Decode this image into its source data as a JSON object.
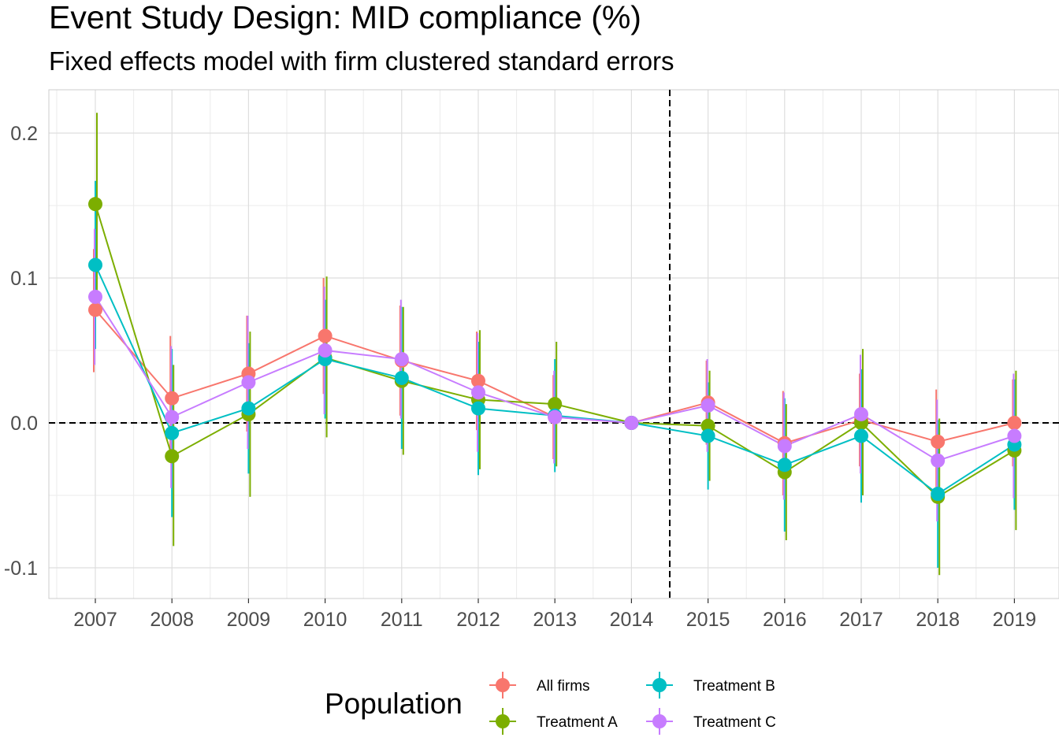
{
  "chart_data": {
    "type": "line",
    "title": "Event Study Design: MID compliance (%)",
    "subtitle": "Fixed effects model with firm clustered standard errors",
    "xlabel": "",
    "ylabel": "",
    "categories": [
      "2007",
      "2008",
      "2009",
      "2010",
      "2011",
      "2012",
      "2013",
      "2014",
      "2015",
      "2016",
      "2017",
      "2018",
      "2019"
    ],
    "ylim": [
      -0.12,
      0.23
    ],
    "yticks": [
      -0.1,
      0.0,
      0.1,
      0.2
    ],
    "ytick_labels": [
      "-0.1",
      "0.0",
      "0.1",
      "0.2"
    ],
    "grid": true,
    "reference_lines": {
      "horizontal_y": 0.0,
      "vertical_between": [
        "2014",
        "2015"
      ],
      "style": "dashed"
    },
    "legend": {
      "title": "Population",
      "position": "bottom"
    },
    "series": [
      {
        "name": "All firms",
        "color": "#F8766D",
        "values": [
          0.078,
          0.017,
          0.034,
          0.06,
          0.043,
          0.029,
          0.004,
          0.0,
          0.014,
          -0.014,
          0.002,
          -0.013,
          0.0
        ],
        "ci_low": [
          0.035,
          -0.025,
          -0.006,
          0.02,
          0.005,
          -0.005,
          -0.025,
          0.0,
          -0.015,
          -0.05,
          -0.03,
          -0.048,
          -0.03
        ],
        "ci_high": [
          0.12,
          0.06,
          0.074,
          0.1,
          0.081,
          0.063,
          0.033,
          0.0,
          0.043,
          0.022,
          0.034,
          0.023,
          0.03
        ]
      },
      {
        "name": "Treatment A",
        "color": "#7CAE00",
        "values": [
          0.151,
          -0.023,
          0.006,
          0.045,
          0.029,
          0.016,
          0.013,
          0.0,
          -0.002,
          -0.034,
          0.0,
          -0.051,
          -0.019
        ],
        "ci_low": [
          0.088,
          -0.085,
          -0.051,
          -0.01,
          -0.022,
          -0.032,
          -0.03,
          0.0,
          -0.04,
          -0.081,
          -0.05,
          -0.105,
          -0.074
        ],
        "ci_high": [
          0.214,
          0.04,
          0.063,
          0.101,
          0.08,
          0.064,
          0.056,
          0.0,
          0.036,
          0.013,
          0.051,
          0.003,
          0.036
        ]
      },
      {
        "name": "Treatment B",
        "color": "#00BFC4",
        "values": [
          0.109,
          -0.007,
          0.01,
          0.044,
          0.031,
          0.01,
          0.005,
          0.0,
          -0.009,
          -0.029,
          -0.009,
          -0.049,
          -0.015
        ],
        "ci_low": [
          0.051,
          -0.065,
          -0.035,
          0.003,
          -0.018,
          -0.036,
          -0.034,
          0.0,
          -0.046,
          -0.075,
          -0.055,
          -0.1,
          -0.06
        ],
        "ci_high": [
          0.167,
          0.051,
          0.055,
          0.085,
          0.08,
          0.056,
          0.044,
          0.0,
          0.028,
          0.017,
          0.037,
          0.002,
          0.03
        ]
      },
      {
        "name": "Treatment C",
        "color": "#C77CFF",
        "values": [
          0.087,
          0.004,
          0.028,
          0.05,
          0.044,
          0.021,
          0.004,
          0.0,
          0.012,
          -0.016,
          0.006,
          -0.026,
          -0.009
        ],
        "ci_low": [
          0.04,
          -0.045,
          -0.018,
          0.006,
          0.003,
          -0.02,
          -0.028,
          0.0,
          -0.02,
          -0.053,
          -0.035,
          -0.068,
          -0.052
        ],
        "ci_high": [
          0.134,
          0.053,
          0.074,
          0.094,
          0.085,
          0.062,
          0.036,
          0.0,
          0.044,
          0.021,
          0.047,
          0.016,
          0.034
        ]
      }
    ]
  }
}
